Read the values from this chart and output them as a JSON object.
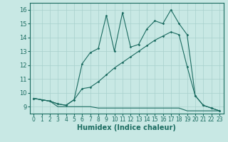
{
  "xlabel": "Humidex (Indice chaleur)",
  "xlim": [
    -0.5,
    23.5
  ],
  "ylim": [
    8.5,
    16.5
  ],
  "xticks": [
    0,
    1,
    2,
    3,
    4,
    5,
    6,
    7,
    8,
    9,
    10,
    11,
    12,
    13,
    14,
    15,
    16,
    17,
    18,
    19,
    20,
    21,
    22,
    23
  ],
  "yticks": [
    9,
    10,
    11,
    12,
    13,
    14,
    15,
    16
  ],
  "bg_color": "#c8e8e4",
  "grid_color": "#a8d0cc",
  "line_color": "#1a6b60",
  "line1_x": [
    0,
    1,
    2,
    3,
    4,
    5,
    6,
    7,
    8,
    9,
    10,
    11,
    12,
    13,
    14,
    15,
    16,
    17,
    18,
    19,
    20,
    21,
    22,
    23
  ],
  "line1_y": [
    9.6,
    9.5,
    9.4,
    9.0,
    9.0,
    9.0,
    9.0,
    9.0,
    8.9,
    8.9,
    8.9,
    8.9,
    8.9,
    8.9,
    8.9,
    8.9,
    8.9,
    8.9,
    8.9,
    8.7,
    8.7,
    8.7,
    8.7,
    8.7
  ],
  "line2_x": [
    0,
    1,
    2,
    3,
    4,
    5,
    6,
    7,
    8,
    9,
    10,
    11,
    12,
    13,
    14,
    15,
    16,
    17,
    18,
    19,
    20,
    21,
    22,
    23
  ],
  "line2_y": [
    9.6,
    9.5,
    9.4,
    9.2,
    9.1,
    9.5,
    10.3,
    10.4,
    10.8,
    11.3,
    11.8,
    12.2,
    12.6,
    13.0,
    13.4,
    13.8,
    14.1,
    14.4,
    14.2,
    11.9,
    9.8,
    9.1,
    8.9,
    8.7
  ],
  "line3_x": [
    0,
    1,
    2,
    3,
    4,
    5,
    6,
    7,
    8,
    9,
    10,
    11,
    12,
    13,
    14,
    15,
    16,
    17,
    18,
    19,
    20,
    21,
    22,
    23
  ],
  "line3_y": [
    9.6,
    9.5,
    9.4,
    9.2,
    9.1,
    9.5,
    12.1,
    12.9,
    13.2,
    15.6,
    13.0,
    15.8,
    13.3,
    13.5,
    14.6,
    15.2,
    15.0,
    16.0,
    15.0,
    14.2,
    9.8,
    9.1,
    8.9,
    8.7
  ]
}
